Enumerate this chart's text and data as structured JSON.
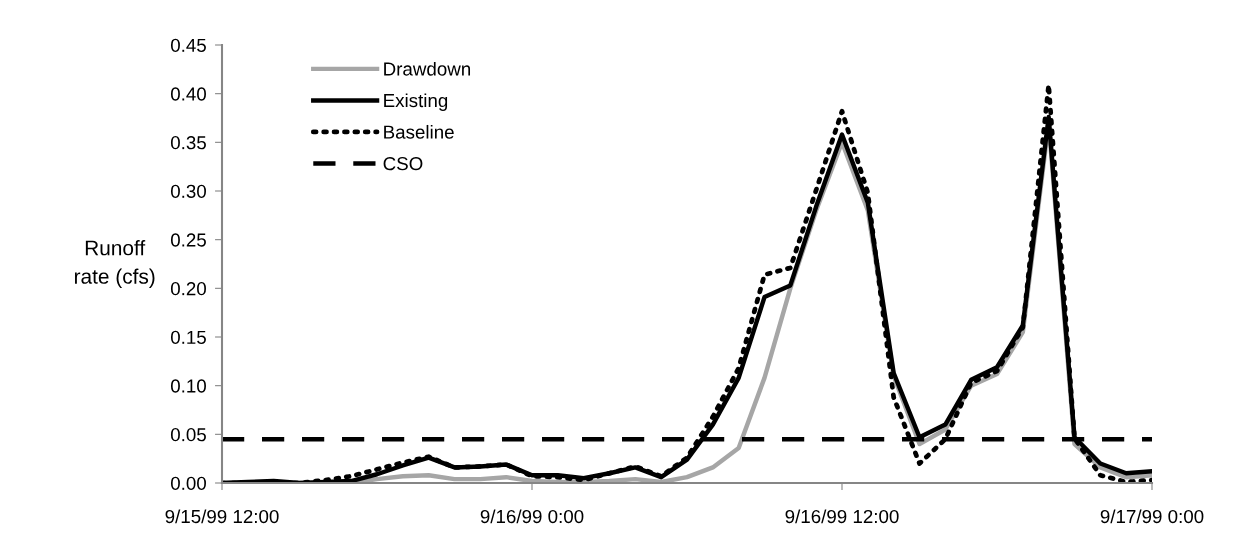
{
  "chart_data": {
    "type": "line",
    "ylabel": "Runoff\nrate (cfs)",
    "x": [
      "1999-09-15T12:00",
      "1999-09-15T13:00",
      "1999-09-15T14:00",
      "1999-09-15T15:00",
      "1999-09-15T16:00",
      "1999-09-15T17:00",
      "1999-09-15T18:00",
      "1999-09-15T19:00",
      "1999-09-15T20:00",
      "1999-09-15T21:00",
      "1999-09-15T22:00",
      "1999-09-15T23:00",
      "1999-09-16T00:00",
      "1999-09-16T01:00",
      "1999-09-16T02:00",
      "1999-09-16T03:00",
      "1999-09-16T04:00",
      "1999-09-16T05:00",
      "1999-09-16T06:00",
      "1999-09-16T07:00",
      "1999-09-16T08:00",
      "1999-09-16T09:00",
      "1999-09-16T10:00",
      "1999-09-16T11:00",
      "1999-09-16T12:00",
      "1999-09-16T13:00",
      "1999-09-16T14:00",
      "1999-09-16T15:00",
      "1999-09-16T16:00",
      "1999-09-16T17:00",
      "1999-09-16T18:00",
      "1999-09-16T19:00",
      "1999-09-16T20:00",
      "1999-09-16T21:00",
      "1999-09-16T22:00",
      "1999-09-16T23:00",
      "1999-09-17T00:00"
    ],
    "xlim": [
      "1999-09-15T12:00",
      "1999-09-17T00:00"
    ],
    "xticks": [
      {
        "value": "1999-09-15T12:00",
        "label": "9/15/99 12:00"
      },
      {
        "value": "1999-09-16T00:00",
        "label": "9/16/99 0:00"
      },
      {
        "value": "1999-09-16T12:00",
        "label": "9/16/99 12:00"
      },
      {
        "value": "1999-09-17T00:00",
        "label": "9/17/99 0:00"
      }
    ],
    "ylim": [
      0,
      0.45
    ],
    "yticks": [
      {
        "value": 0,
        "label": "0.00"
      },
      {
        "value": 0.05,
        "label": "0.05"
      },
      {
        "value": 0.1,
        "label": "0.10"
      },
      {
        "value": 0.15,
        "label": "0.15"
      },
      {
        "value": 0.2,
        "label": "0.20"
      },
      {
        "value": 0.25,
        "label": "0.25"
      },
      {
        "value": 0.3,
        "label": "0.30"
      },
      {
        "value": 0.35,
        "label": "0.35"
      },
      {
        "value": 0.4,
        "label": "0.40"
      },
      {
        "value": 0.45,
        "label": "0.45"
      }
    ],
    "grid": false,
    "legend": "top left",
    "series": [
      {
        "name": "Drawdown",
        "color": "#a6a6a6",
        "line_style": "solid",
        "values": [
          0,
          0,
          0,
          0,
          0,
          0,
          0.004,
          0.007,
          0.008,
          0.004,
          0.004,
          0.006,
          0.002,
          0.001,
          0.001,
          0.002,
          0.004,
          0.001,
          0.006,
          0.016,
          0.036,
          0.108,
          0.2,
          0.28,
          0.35,
          0.28,
          0.11,
          0.04,
          0.055,
          0.1,
          0.112,
          0.155,
          0.37,
          0.04,
          0.016,
          0.006,
          0.008
        ]
      },
      {
        "name": "Existing",
        "color": "#000000",
        "line_style": "solid",
        "values": [
          0,
          0.001,
          0.002,
          0,
          0.001,
          0.002,
          0.009,
          0.018,
          0.026,
          0.016,
          0.017,
          0.019,
          0.008,
          0.008,
          0.005,
          0.01,
          0.016,
          0.006,
          0.024,
          0.06,
          0.108,
          0.191,
          0.203,
          0.284,
          0.358,
          0.288,
          0.113,
          0.047,
          0.06,
          0.106,
          0.119,
          0.162,
          0.376,
          0.047,
          0.02,
          0.01,
          0.012
        ]
      },
      {
        "name": "Baseline",
        "color": "#000000",
        "line_style": "dotted",
        "values": [
          0,
          0,
          0,
          0,
          0.003,
          0.007,
          0.014,
          0.021,
          0.027,
          0.016,
          0.017,
          0.019,
          0.007,
          0.006,
          0.003,
          0.01,
          0.017,
          0.007,
          0.026,
          0.068,
          0.118,
          0.214,
          0.221,
          0.301,
          0.382,
          0.298,
          0.088,
          0.02,
          0.045,
          0.103,
          0.115,
          0.16,
          0.409,
          0.046,
          0.008,
          0.001,
          0.003
        ]
      },
      {
        "name": "CSO",
        "color": "#000000",
        "line_style": "dashed",
        "x": [
          "1999-09-15T12:00",
          "1999-09-17T00:00"
        ],
        "values": [
          0.045,
          0.045
        ]
      }
    ]
  }
}
